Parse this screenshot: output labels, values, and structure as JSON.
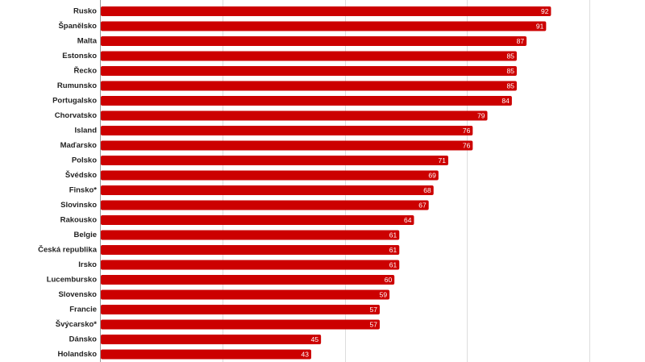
{
  "chart_data": {
    "type": "bar",
    "orientation": "horizontal",
    "title": "",
    "xlabel": "",
    "ylabel": "",
    "xlim": [
      0,
      100
    ],
    "grid": true,
    "bar_color": "#cc0000",
    "categories": [
      "Rusko",
      "Španělsko",
      "Malta",
      "Estonsko",
      "Řecko",
      "Rumunsko",
      "Portugalsko",
      "Chorvatsko",
      "Island",
      "Maďarsko",
      "Polsko",
      "Švédsko",
      "Finsko*",
      "Slovinsko",
      "Rakousko",
      "Belgie",
      "Česká republika",
      "Irsko",
      "Lucembursko",
      "Slovensko",
      "Francie",
      "Švýcarsko*",
      "Dánsko",
      "Holandsko"
    ],
    "values": [
      92,
      91,
      87,
      85,
      85,
      85,
      84,
      79,
      76,
      76,
      71,
      69,
      68,
      67,
      64,
      61,
      61,
      61,
      60,
      59,
      57,
      57,
      45,
      43
    ]
  }
}
